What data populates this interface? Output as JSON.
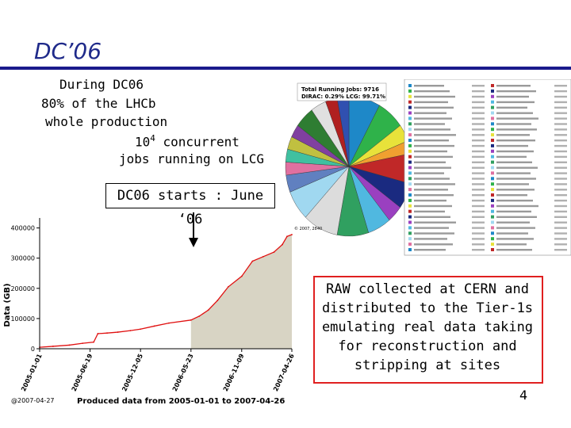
{
  "slide": {
    "title": "DC’06",
    "page_number": "4"
  },
  "intro": {
    "line1": "During DC06",
    "line2": "80%  of the LHCb",
    "line3": "whole production",
    "line4_base": "10",
    "line4_sup": "4",
    "line4_rest": " concurrent",
    "line5": "jobs running on LCG"
  },
  "start_note": "DC06 starts : June ‘06",
  "raw_note": [
    "RAW collected at CERN and",
    "distributed to the Tier-1s",
    "emulating real data taking",
    "for reconstruction and",
    "stripping at sites"
  ],
  "jobs_pie": {
    "title": "Total Running Jobs: 9716",
    "subtitle": "DIRAC: 0.29%   LCG: 99.71%",
    "stamp": "© 2007, 2840"
  },
  "colors": {
    "title": "#1f2a8a",
    "rule": "#1a1a8c",
    "line": "#e01010",
    "fill": "#d8d4c4",
    "raw_border": "#e02020"
  },
  "chart_data": {
    "type": "area",
    "title": "Produced data from 2005-01-01 to 2007-04-26",
    "xlabel": "",
    "ylabel": "Data (GB)",
    "y_ticks": [
      "0",
      "100000",
      "200000",
      "300000",
      "400000"
    ],
    "ylim": [
      0,
      420000
    ],
    "x_ticks": [
      "2005-01-01",
      "2005-06-19",
      "2005-12-05",
      "2006-05-23",
      "2006-11-09",
      "2007-04-26"
    ],
    "x": [
      "2005-01-01",
      "2005-02-15",
      "2005-04-10",
      "2005-05-25",
      "2005-07-01",
      "2005-07-15",
      "2005-08-15",
      "2005-09-20",
      "2005-11-01",
      "2005-12-05",
      "2006-01-20",
      "2006-03-10",
      "2006-05-23",
      "2006-06-20",
      "2006-07-20",
      "2006-08-20",
      "2006-09-25",
      "2006-11-09",
      "2006-12-15",
      "2007-01-20",
      "2007-02-25",
      "2007-03-25",
      "2007-04-10",
      "2007-04-26"
    ],
    "values": [
      5000,
      8000,
      12000,
      18000,
      22000,
      50000,
      52000,
      55000,
      60000,
      65000,
      75000,
      85000,
      95000,
      108000,
      128000,
      160000,
      205000,
      240000,
      290000,
      305000,
      320000,
      345000,
      372000,
      378000
    ],
    "grid": false,
    "footer_date": "@2007-04-27"
  }
}
